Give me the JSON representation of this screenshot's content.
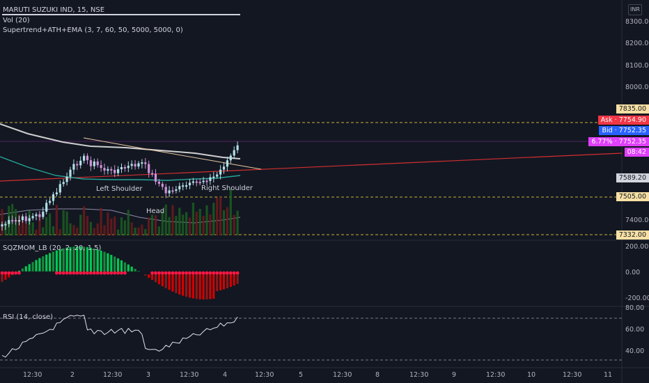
{
  "header": {
    "symbol_title": "MARUTI SUZUKI IND, 15, NSE",
    "vol_label": "Vol (20)",
    "supertrend_label": "Supertrend+ATH+EMA (3, 7, 60, 50, 5000, 5000, 0)",
    "currency": "INR"
  },
  "annotations": {
    "left_shoulder": "Left Shoulder",
    "head": "Head",
    "right_shoulder": "Right Shoulder"
  },
  "price_axis": {
    "ticks": [
      "8300.00",
      "8200.00",
      "8100.00",
      "8000.00",
      "7400.00"
    ],
    "badges": [
      {
        "label": "7835.00",
        "color": "#f7e0a3"
      },
      {
        "label": "7754.90",
        "prefix": "Ask",
        "color": "#f23645"
      },
      {
        "label": "7752.35",
        "prefix": "Bid",
        "color": "#2962ff"
      },
      {
        "label": "7752.35",
        "prefix": "6.77%",
        "color": "#e040fb"
      },
      {
        "label": "08:42",
        "color": "#e040fb"
      },
      {
        "label": "7589.20",
        "color": "#d1d4dc"
      },
      {
        "label": "7505.00",
        "color": "#f7e0a3"
      },
      {
        "label": "7332.00",
        "color": "#f7e0a3"
      }
    ]
  },
  "sqz_panel": {
    "label": "SQZMOM_LB (20, 2, 20, 1.5)",
    "ticks": [
      "200.00",
      "0.00",
      "-200.00"
    ]
  },
  "rsi_panel": {
    "label": "RSI (14, close)",
    "ticks": [
      "80.00",
      "60.00",
      "40.00"
    ]
  },
  "time_axis": {
    "labels": [
      "12:30",
      "2",
      "12:30",
      "3",
      "12:30",
      "4",
      "12:30",
      "5",
      "12:30",
      "8",
      "12:30",
      "9",
      "12:30",
      "10",
      "12:30",
      "11"
    ]
  },
  "colors": {
    "up": "#b2dfe6",
    "down": "#ce93d8",
    "ema_gray": "#cfcfcf",
    "ema_green": "#26a69a",
    "trend_red": "#d32f2f",
    "sqz_green": "#00c853",
    "sqz_red": "#d50000",
    "sqz_dot": "#ff1744"
  }
}
